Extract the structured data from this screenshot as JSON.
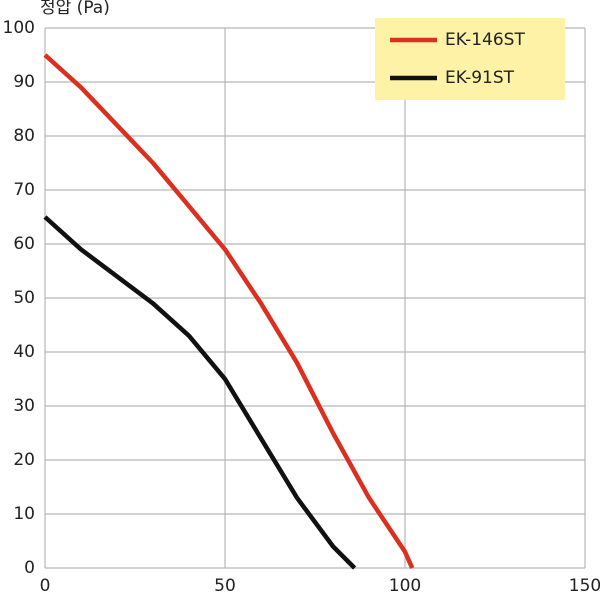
{
  "chart_data": {
    "type": "line",
    "y_label": "정압 (Pa)",
    "xlim": [
      0,
      150
    ],
    "xticks": [
      0,
      50,
      100,
      150
    ],
    "ylim": [
      0,
      100
    ],
    "yticks": [
      0,
      10,
      20,
      30,
      40,
      50,
      60,
      70,
      80,
      90,
      100
    ],
    "grid": true,
    "legend": "top-right",
    "legend_color": "#fdf2a6",
    "series": [
      {
        "name": "EK-146ST",
        "color": "#d9301f",
        "x": [
          0,
          10,
          20,
          30,
          40,
          50,
          60,
          70,
          80,
          90,
          100,
          102
        ],
        "values": [
          95,
          89,
          82,
          75,
          67,
          59,
          49,
          38,
          25,
          13,
          3,
          0
        ]
      },
      {
        "name": "EK-91ST",
        "color": "#111111",
        "x": [
          0,
          10,
          20,
          30,
          40,
          50,
          60,
          70,
          80,
          86
        ],
        "values": [
          65,
          59,
          54,
          49,
          43,
          35,
          24,
          13,
          4,
          0
        ]
      }
    ]
  }
}
